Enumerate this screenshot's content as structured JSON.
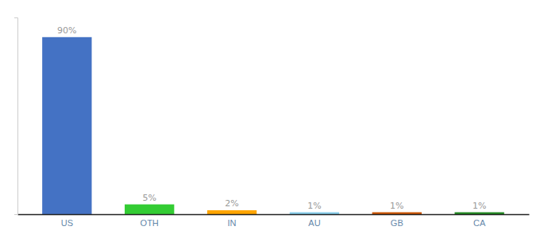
{
  "chart_data": {
    "type": "bar",
    "categories": [
      "US",
      "OTH",
      "IN",
      "AU",
      "GB",
      "CA"
    ],
    "values": [
      90,
      5,
      2,
      1,
      1,
      1
    ],
    "value_labels": [
      "90%",
      "5%",
      "2%",
      "1%",
      "1%",
      "1%"
    ],
    "colors": [
      "#4472C4",
      "#33CC33",
      "#FFA500",
      "#87CEEB",
      "#CC5500",
      "#228B22"
    ],
    "ylim": [
      0,
      100
    ],
    "data_labels": true,
    "tick_labels": "x",
    "grid": false
  }
}
